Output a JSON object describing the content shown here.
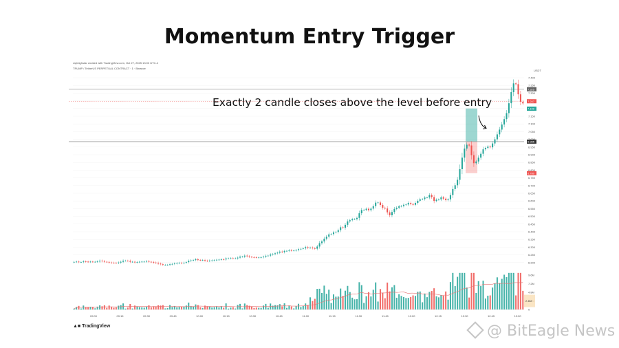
{
  "title": "Momentum Entry Trigger",
  "annotation": "Exactly 2 candle closes above the level before entry",
  "watermark": "@ BitEagle News",
  "tradingview_label": "TradingView",
  "chart_meta": {
    "created_line": "rayleighstar created with TradingView.com, Oct 27, 2025 13:03 UTC-4",
    "symbol_line": "TRUMP / TetherUS PERPETUAL CONTRACT · 1 · Binance",
    "currency": "USDT"
  },
  "colors": {
    "up": "#26a69a",
    "down": "#ef5350",
    "entry_box": "#26a69a",
    "stop_box": "#ef5350",
    "level": "#9e9e9e",
    "volume_ma": "#e57373"
  },
  "chart_data": {
    "type": "candlestick",
    "title": "Momentum Entry Trigger",
    "x_ticks": [
      "09:00",
      "09:15",
      "09:30",
      "09:45",
      "10:00",
      "10:15",
      "10:30",
      "10:45",
      "11:00",
      "11:15",
      "11:30",
      "11:45",
      "12:00",
      "12:15",
      "12:30",
      "12:45",
      "13:00"
    ],
    "y_ticks": [
      6.2,
      6.25,
      6.3,
      6.35,
      6.4,
      6.45,
      6.5,
      6.55,
      6.6,
      6.65,
      6.7,
      6.75,
      6.8,
      6.85,
      6.9,
      6.95,
      7.0,
      7.05,
      7.1,
      7.15,
      7.2,
      7.25,
      7.3,
      7.35,
      7.4
    ],
    "ylim": [
      6.19,
      7.44
    ],
    "volume_ticks": [
      "0",
      "2.4M",
      "4.8M",
      "7.2M",
      "9.6M"
    ],
    "volume_ylim": [
      0,
      10.8
    ],
    "levels": [
      7.325,
      6.985
    ],
    "right_labels": [
      {
        "value": 7.325,
        "text": "7.325",
        "color": "#616161"
      },
      {
        "value": 7.247,
        "text": "7.247",
        "color": "#ef5350"
      },
      {
        "value": 7.199,
        "text": "7.199",
        "color": "#26a69a"
      },
      {
        "value": 6.985,
        "text": "6.985",
        "color": "#333333"
      },
      {
        "value": 6.78,
        "text": "6.780",
        "color": "#ef5350"
      }
    ],
    "entry_zone": {
      "start": 168,
      "end": 172,
      "low": 6.985,
      "high": 7.2
    },
    "stop_zone": {
      "start": 168,
      "end": 172,
      "low": 6.78,
      "high": 6.985
    },
    "volume_badge": "2.4M",
    "close": [
      6.204,
      6.206,
      6.203,
      6.203,
      6.207,
      6.206,
      6.204,
      6.206,
      6.205,
      6.205,
      6.207,
      6.212,
      6.209,
      6.205,
      6.204,
      6.2,
      6.199,
      6.198,
      6.197,
      6.2,
      6.205,
      6.212,
      6.212,
      6.211,
      6.205,
      6.205,
      6.201,
      6.203,
      6.205,
      6.206,
      6.206,
      6.209,
      6.205,
      6.203,
      6.2,
      6.198,
      6.193,
      6.189,
      6.185,
      6.185,
      6.185,
      6.189,
      6.191,
      6.194,
      6.196,
      6.198,
      6.196,
      6.199,
      6.203,
      6.211,
      6.214,
      6.216,
      6.221,
      6.216,
      6.215,
      6.216,
      6.212,
      6.21,
      6.213,
      6.214,
      6.215,
      6.218,
      6.219,
      6.221,
      6.22,
      6.227,
      6.227,
      6.228,
      6.227,
      6.227,
      6.232,
      6.238,
      6.238,
      6.245,
      6.241,
      6.237,
      6.235,
      6.234,
      6.233,
      6.233,
      6.234,
      6.238,
      6.244,
      6.245,
      6.252,
      6.255,
      6.26,
      6.264,
      6.271,
      6.268,
      6.275,
      6.276,
      6.28,
      6.278,
      6.278,
      6.281,
      6.287,
      6.289,
      6.292,
      6.3,
      6.295,
      6.297,
      6.293,
      6.29,
      6.304,
      6.326,
      6.337,
      6.355,
      6.368,
      6.383,
      6.385,
      6.396,
      6.399,
      6.41,
      6.429,
      6.426,
      6.445,
      6.467,
      6.475,
      6.482,
      6.482,
      6.49,
      6.52,
      6.541,
      6.542,
      6.549,
      6.54,
      6.55,
      6.566,
      6.589,
      6.59,
      6.574,
      6.556,
      6.551,
      6.526,
      6.507,
      6.528,
      6.548,
      6.556,
      6.565,
      6.567,
      6.575,
      6.577,
      6.587,
      6.58,
      6.575,
      6.587,
      6.601,
      6.611,
      6.612,
      6.622,
      6.622,
      6.638,
      6.625,
      6.6,
      6.608,
      6.61,
      6.623,
      6.615,
      6.605,
      6.61,
      6.638,
      6.677,
      6.702,
      6.737,
      6.806,
      6.881,
      6.94,
      6.965,
      6.96,
      6.897,
      6.845,
      6.856,
      6.881,
      6.906,
      6.935,
      6.944,
      6.953,
      6.948,
      6.973,
      7.0,
      7.032,
      7.063,
      7.096,
      7.131,
      7.17,
      7.234,
      7.306,
      7.363,
      7.358,
      7.292,
      7.244,
      7.233
    ]
  }
}
